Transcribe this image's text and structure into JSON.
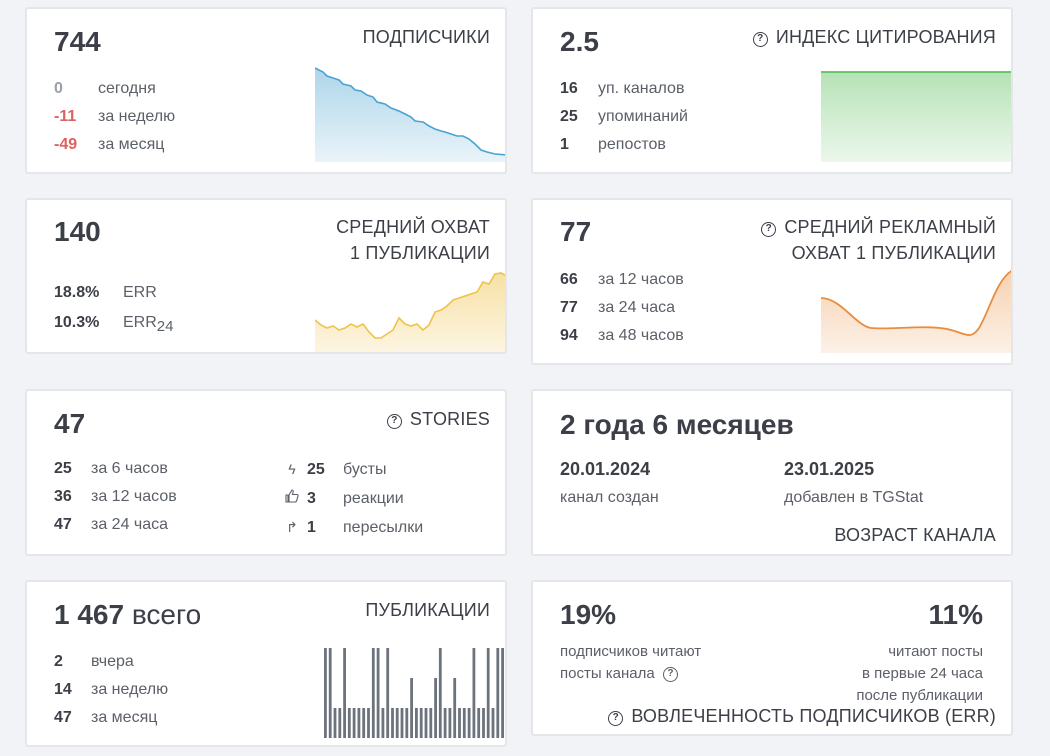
{
  "subscribers": {
    "value": "744",
    "title": "ПОДПИСЧИКИ",
    "rows": [
      {
        "value": "0",
        "label": "сегодня"
      },
      {
        "value": "-11",
        "label": "за неделю"
      },
      {
        "value": "-49",
        "label": "за месяц"
      }
    ],
    "color": "#4aa3d0"
  },
  "citation": {
    "value": "2.5",
    "title": "ИНДЕКС ЦИТИРОВАНИЯ",
    "rows": [
      {
        "value": "16",
        "label": "уп. каналов"
      },
      {
        "value": "25",
        "label": "упоминаний"
      },
      {
        "value": "1",
        "label": "репостов"
      }
    ],
    "color": "#5cbf5c"
  },
  "reach": {
    "value": "140",
    "title_line1": "СРЕДНИЙ ОХВАТ",
    "title_line2": "1 ПУБЛИКАЦИИ",
    "rows": [
      {
        "value": "18.8%",
        "label": "ERR"
      },
      {
        "value": "10.3%",
        "label": "ERR",
        "sub": "24"
      }
    ],
    "color": "#f0c24a"
  },
  "ad_reach": {
    "value": "77",
    "title_line1": "СРЕДНИЙ РЕКЛАМНЫЙ",
    "title_line2": "ОХВАТ 1 ПУБЛИКАЦИИ",
    "rows": [
      {
        "value": "66",
        "label": "за 12 часов"
      },
      {
        "value": "77",
        "label": "за 24 часа"
      },
      {
        "value": "94",
        "label": "за 48 часов"
      }
    ],
    "color": "#ea8c3c"
  },
  "stories": {
    "value": "47",
    "title": "STORIES",
    "rows": [
      {
        "value": "25",
        "label": "за 6 часов"
      },
      {
        "value": "36",
        "label": "за 12 часов"
      },
      {
        "value": "47",
        "label": "за 24 часа"
      }
    ],
    "stats": [
      {
        "icon": "lightning-icon",
        "value": "25",
        "label": "бусты"
      },
      {
        "icon": "thumbs-up-icon",
        "value": "3",
        "label": "реакции"
      },
      {
        "icon": "forward-arrow-icon",
        "value": "1",
        "label": "пересылки"
      }
    ]
  },
  "age": {
    "value": "2 года 6 месяцев",
    "created_date": "20.01.2024",
    "created_label": "канал создан",
    "added_date": "23.01.2025",
    "added_label": "добавлен в TGStat",
    "title": "ВОЗРАСТ КАНАЛА"
  },
  "posts": {
    "value": "1 467",
    "unit": "всего",
    "title": "ПУБЛИКАЦИИ",
    "rows": [
      {
        "value": "2",
        "label": "вчера"
      },
      {
        "value": "14",
        "label": "за неделю"
      },
      {
        "value": "47",
        "label": "за месяц"
      }
    ],
    "bars": [
      3,
      3,
      1,
      1,
      3,
      1,
      1,
      1,
      1,
      1,
      3,
      3,
      1,
      3,
      1,
      1,
      1,
      1,
      2,
      1,
      1,
      1,
      1,
      2,
      3,
      1,
      1,
      2,
      1,
      1,
      1,
      3,
      1,
      1,
      3,
      1,
      3,
      3
    ],
    "bar_color": "#6c737c"
  },
  "engagement": {
    "left_value": "19%",
    "left_line1": "подписчиков читают",
    "left_line2": "посты канала",
    "right_value": "11%",
    "right_line1": "читают посты",
    "right_line2": "в первые 24 часа",
    "right_line3": "после публикации",
    "title": "ВОВЛЕЧЕННОСТЬ ПОДПИСЧИКОВ (ERR)"
  }
}
